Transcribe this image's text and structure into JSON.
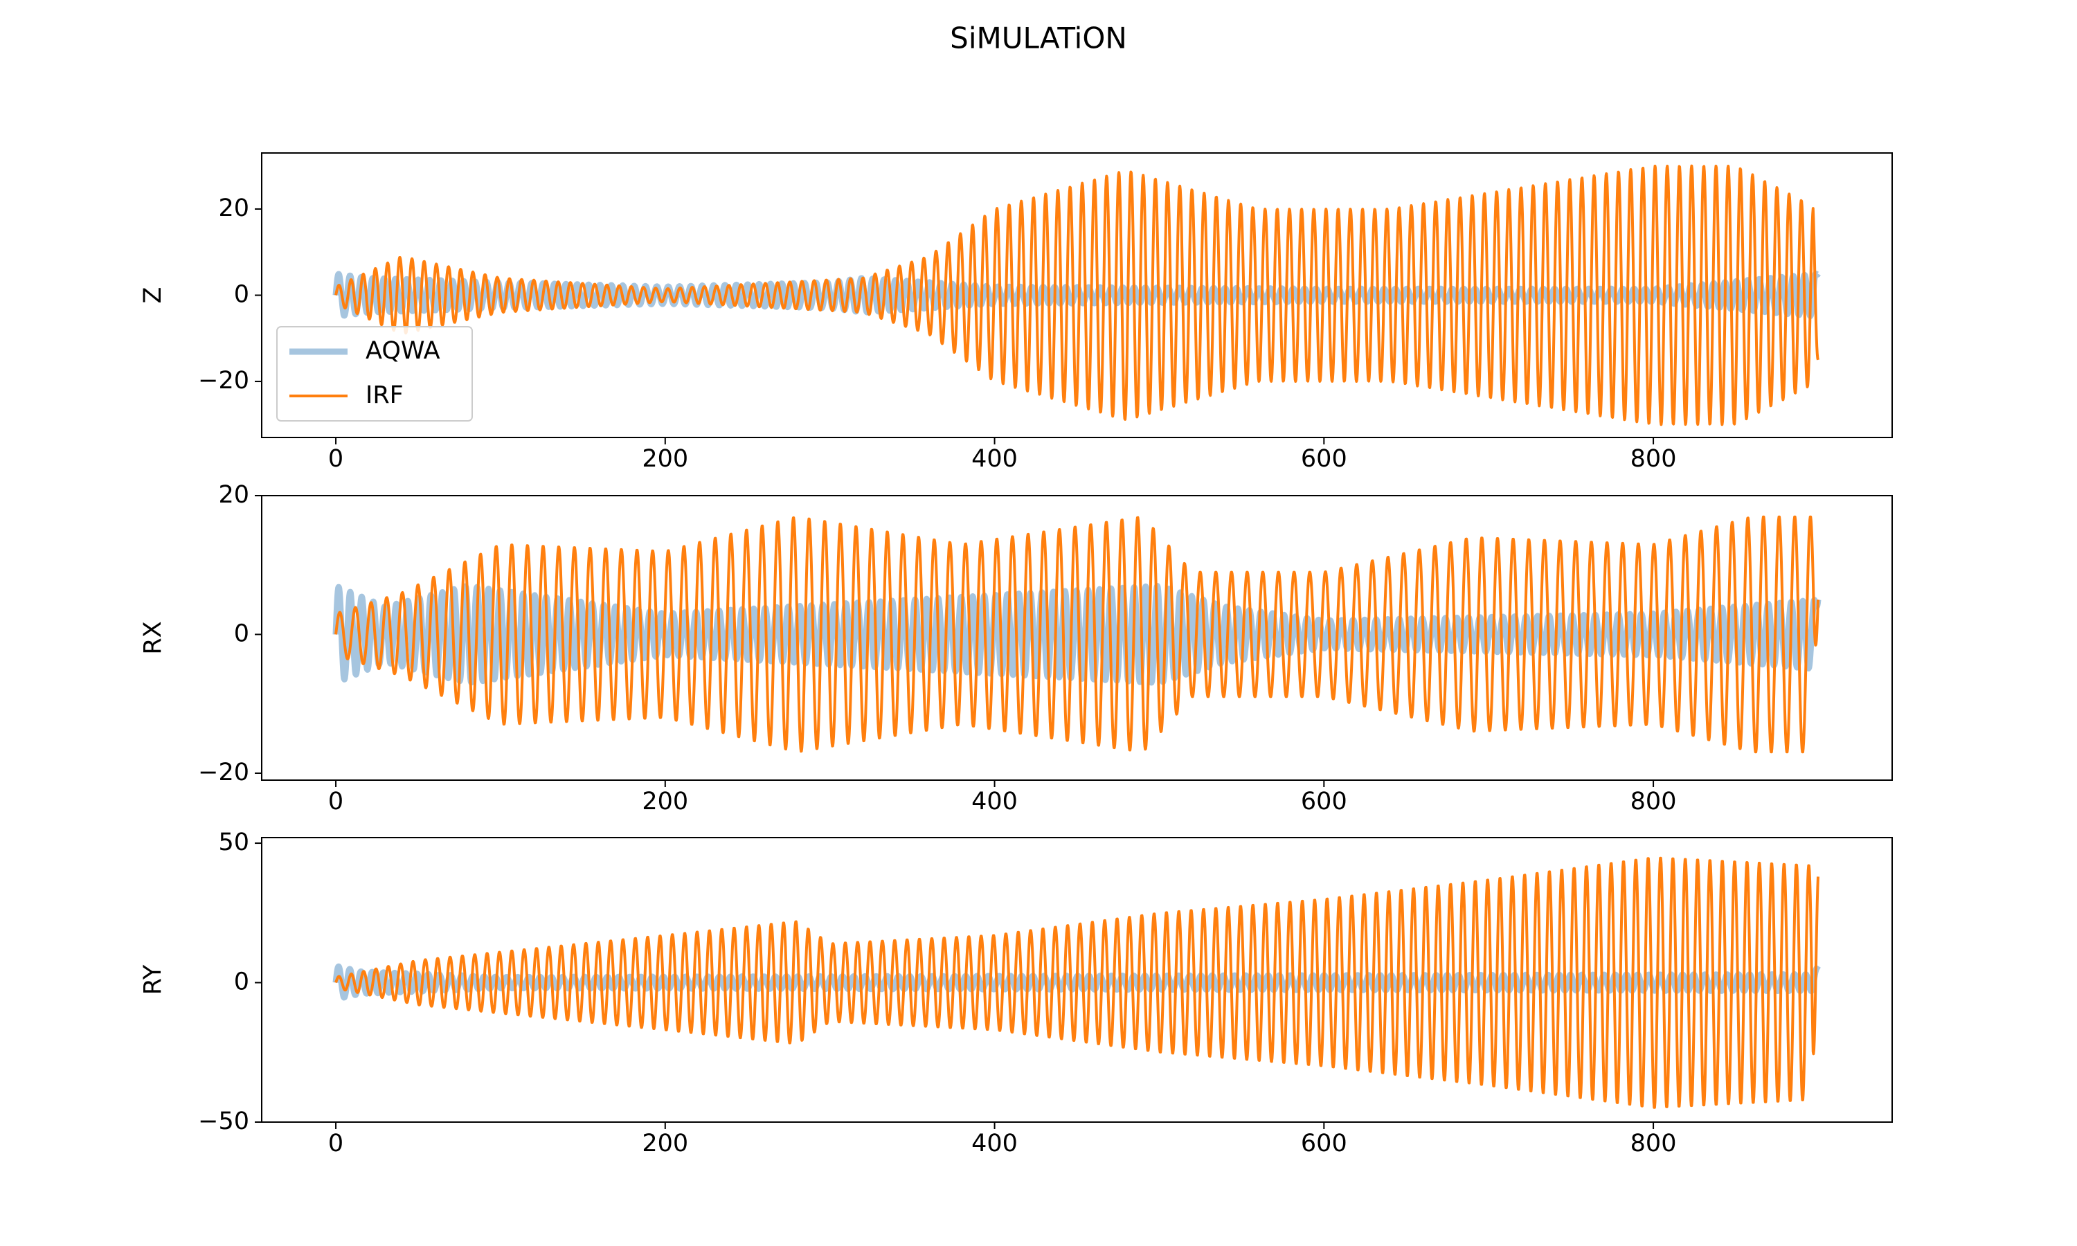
{
  "figure": {
    "title": "SiMULATiON"
  },
  "colors": {
    "aqwa": "#a6c5df",
    "irf": "#ff7f0e",
    "axes": "#000000"
  },
  "legend": {
    "placement": "lower-left",
    "panel": 0,
    "entries": [
      "AQWA",
      "IRF"
    ]
  },
  "chart_data": [
    {
      "type": "line",
      "ylabel": "Z",
      "xlim": [
        -45,
        945
      ],
      "ylim": [
        -33,
        33
      ],
      "xticks": [
        0,
        200,
        400,
        600,
        800
      ],
      "yticks": [
        -20,
        0,
        20
      ],
      "ytick_labels": [
        "−20",
        "0",
        "20"
      ],
      "series": [
        {
          "name": "AQWA",
          "period_s": 6.9,
          "envelope": {
            "t": [
              0,
              20,
              100,
              200,
              300,
              320,
              400,
              600,
              800,
              900
            ],
            "amp": [
              5,
              4,
              3,
              2,
              3,
              4,
              2,
              1.5,
              1.5,
              5
            ]
          },
          "end_value": 5
        },
        {
          "name": "IRF",
          "period_s": 7.4,
          "envelope": {
            "t": [
              0,
              40,
              100,
              200,
              320,
              360,
              400,
              480,
              560,
              640,
              720,
              800,
              850,
              900
            ],
            "amp": [
              2,
              9,
              4,
              1.5,
              4,
              9,
              20,
              29,
              20,
              20,
              25,
              30,
              30,
              20
            ]
          },
          "end_value": -15
        }
      ]
    },
    {
      "type": "line",
      "ylabel": "RX",
      "xlim": [
        -45,
        945
      ],
      "ylim": [
        -21,
        20
      ],
      "xticks": [
        0,
        200,
        400,
        600,
        800
      ],
      "yticks": [
        -20,
        0,
        20
      ],
      "ytick_labels": [
        "−20",
        "0",
        "20"
      ],
      "series": [
        {
          "name": "AQWA",
          "period_s": 7.0,
          "envelope": {
            "t": [
              0,
              30,
              80,
              200,
              500,
              540,
              600,
              800,
              900
            ],
            "amp": [
              7,
              4,
              7,
              3,
              7,
              4,
              2,
              3,
              5
            ]
          },
          "end_value": 5
        },
        {
          "name": "IRF",
          "period_s": 9.5,
          "envelope": {
            "t": [
              0,
              40,
              100,
              200,
              280,
              380,
              490,
              520,
              600,
              690,
              800,
              860,
              900
            ],
            "amp": [
              3,
              6,
              13,
              12,
              17,
              13,
              17,
              9,
              9,
              14,
              13,
              17,
              17
            ]
          },
          "end_value": 5
        }
      ]
    },
    {
      "type": "line",
      "ylabel": "RY",
      "xlim": [
        -45,
        945
      ],
      "ylim": [
        -50,
        52
      ],
      "xticks": [
        0,
        200,
        400,
        600,
        800
      ],
      "yticks": [
        -50,
        0,
        50
      ],
      "ytick_labels": [
        "−50",
        "0",
        "50"
      ],
      "series": [
        {
          "name": "AQWA",
          "period_s": 6.8,
          "envelope": {
            "t": [
              0,
              15,
              100,
              900
            ],
            "amp": [
              6,
              4,
              2,
              3
            ]
          },
          "end_value": 6
        },
        {
          "name": "IRF",
          "period_s": 7.5,
          "envelope": {
            "t": [
              0,
              50,
              200,
              280,
              300,
              400,
              500,
              600,
              700,
              800,
              900
            ],
            "amp": [
              2,
              8,
              17,
              22,
              14,
              17,
              25,
              30,
              37,
              45,
              42
            ]
          },
          "end_value": 38
        }
      ]
    }
  ]
}
